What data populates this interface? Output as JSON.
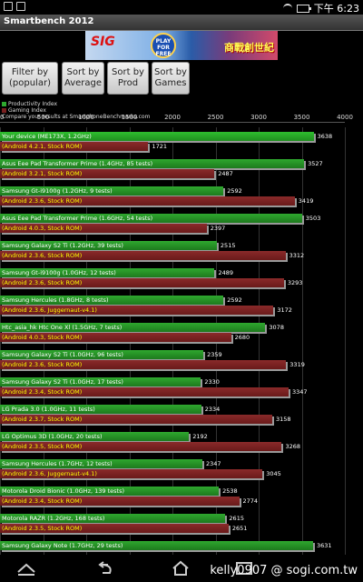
{
  "status": {
    "time": "下午 6:23"
  },
  "app": {
    "title": "Smartbench 2012"
  },
  "ad": {
    "left_text": "SIG",
    "play_text": "PLAY FOR FREE",
    "right_text": "商戰創世紀"
  },
  "buttons": [
    {
      "label": "Filter by (popular)"
    },
    {
      "label": "Sort by Average"
    },
    {
      "label": "Sort by Prod"
    },
    {
      "label": "Sort by Games"
    }
  ],
  "legend": {
    "productivity": "Productivity Index",
    "gaming": "Gaming Index",
    "compare": "Compare your results at SmartphoneBenchmarks.com",
    "colors": {
      "productivity": "#2fa82f",
      "gaming": "#7a1f1f"
    }
  },
  "chart_data": {
    "type": "bar",
    "xlim": [
      0,
      4000
    ],
    "x_ticks": [
      "0",
      "500",
      "1000",
      "1500",
      "2000",
      "2500",
      "3000",
      "3500",
      "4000"
    ],
    "series": [
      {
        "name": "Productivity Index"
      },
      {
        "name": "Gaming Index"
      }
    ],
    "rows": [
      {
        "label": "Your device (ME173X, 1.2GHz)",
        "sub": "(Android 4.2.1, Stock ROM)",
        "prod": 3638,
        "game": 1721,
        "highlight": true
      },
      {
        "label": "Asus Eee Pad Transformer Prime (1.4GHz, 85 tests)",
        "sub": "(Android 3.2.1, Stock ROM)",
        "prod": 3527,
        "game": 2487
      },
      {
        "label": "Samsung Gt-i9100g (1.2GHz, 9 tests)",
        "sub": "(Android 2.3.6, Stock ROM)",
        "prod": 2592,
        "game": 3419
      },
      {
        "label": "Asus Eee Pad Transformer Prime (1.6GHz, 54 tests)",
        "sub": "(Android 4.0.3, Stock ROM)",
        "prod": 3503,
        "game": 2397
      },
      {
        "label": "Samsung Galaxy S2 Ti (1.2GHz, 39 tests)",
        "sub": "(Android 2.3.6, Stock ROM)",
        "prod": 2515,
        "game": 3312
      },
      {
        "label": "Samsung Gt-i9100g (1.0GHz, 12 tests)",
        "sub": "(Android 2.3.6, Stock ROM)",
        "prod": 2489,
        "game": 3293
      },
      {
        "label": "Samsung Hercules (1.8GHz, 8 tests)",
        "sub": "(Android 2.3.6, Juggernaut-v4.1)",
        "prod": 2592,
        "game": 3172
      },
      {
        "label": "Htc_asia_hk Htc One Xl (1.5GHz, 7 tests)",
        "sub": "(Android 4.0.3, Stock ROM)",
        "prod": 3078,
        "game": 2680
      },
      {
        "label": "Samsung Galaxy S2 Ti (1.0GHz, 96 tests)",
        "sub": "(Android 2.3.6, Stock ROM)",
        "prod": 2359,
        "game": 3319
      },
      {
        "label": "Samsung Galaxy S2 Ti (1.0GHz, 17 tests)",
        "sub": "(Android 2.3.4, Stock ROM)",
        "prod": 2330,
        "game": 3347
      },
      {
        "label": "LG Prada 3.0 (1.0GHz, 11 tests)",
        "sub": "(Android 2.3.7, Stock ROM)",
        "prod": 2334,
        "game": 3158
      },
      {
        "label": "LG Optimus 3D (1.0GHz, 20 tests)",
        "sub": "(Android 2.3.5, Stock ROM)",
        "prod": 2192,
        "game": 3268
      },
      {
        "label": "Samsung Hercules (1.7GHz, 12 tests)",
        "sub": "(Android 2.3.6, Juggernaut-v4.1)",
        "prod": 2347,
        "game": 3045
      },
      {
        "label": "Motorola Droid Bionic (1.0GHz, 139 tests)",
        "sub": "(Android 2.3.4, Stock ROM)",
        "prod": 2538,
        "game": 2774
      },
      {
        "label": "Motorola RAZR (1.2GHz, 168 tests)",
        "sub": "(Android 2.3.5, Stock ROM)",
        "prod": 2615,
        "game": 2651
      },
      {
        "label": "Samsung Galaxy Note (1.7GHz, 29 tests)",
        "sub": "",
        "prod": 3631,
        "game": null
      }
    ]
  },
  "watermark": "kelly0907 @ sogi.com.tw"
}
